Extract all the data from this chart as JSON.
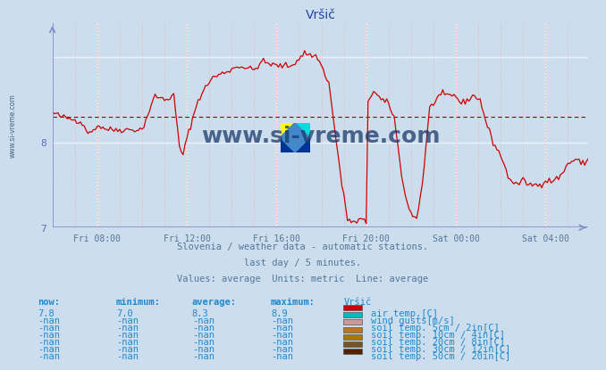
{
  "title": "Vršič",
  "title_color": "#2244aa",
  "bg_color": "#ccdded",
  "plot_bg_color": "#ccdded",
  "axis_color": "#6666bb",
  "line_color": "#cc0000",
  "avg_line_color": "#cc0000",
  "ylim": [
    7.0,
    9.4
  ],
  "yticks": [
    7,
    8
  ],
  "xtick_labels": [
    "Fri 08:00",
    "Fri 12:00",
    "Fri 16:00",
    "Fri 20:00",
    "Sat 00:00",
    "Sat 04:00"
  ],
  "subtitle1": "Slovenia / weather data - automatic stations.",
  "subtitle2": "last day / 5 minutes.",
  "subtitle3": "Values: average  Units: metric  Line: average",
  "subtitle_color": "#557799",
  "watermark": "www.si-vreme.com",
  "watermark_color": "#1a3a6a",
  "table_header_color": "#2288cc",
  "table_data_color": "#2288cc",
  "legend_items": [
    {
      "label": "air temp.[C]",
      "color": "#cc0000"
    },
    {
      "label": "wind gusts[m/s]",
      "color": "#00bbbb"
    },
    {
      "label": "soil temp. 5cm / 2in[C]",
      "color": "#cc9999"
    },
    {
      "label": "soil temp. 10cm / 4in[C]",
      "color": "#bb7722"
    },
    {
      "label": "soil temp. 20cm / 8in[C]",
      "color": "#aa7700"
    },
    {
      "label": "soil temp. 30cm / 12in[C]",
      "color": "#775522"
    },
    {
      "label": "soil temp. 50cm / 20in[C]",
      "color": "#552200"
    }
  ],
  "table_cols": [
    "now:",
    "minimum:",
    "average:",
    "maximum:",
    "Vršič"
  ],
  "table_rows": [
    [
      "7.8",
      "7.0",
      "8.3",
      "8.9"
    ],
    [
      "-nan",
      "-nan",
      "-nan",
      "-nan"
    ],
    [
      "-nan",
      "-nan",
      "-nan",
      "-nan"
    ],
    [
      "-nan",
      "-nan",
      "-nan",
      "-nan"
    ],
    [
      "-nan",
      "-nan",
      "-nan",
      "-nan"
    ],
    [
      "-nan",
      "-nan",
      "-nan",
      "-nan"
    ],
    [
      "-nan",
      "-nan",
      "-nan",
      "-nan"
    ]
  ],
  "average_value": 8.3,
  "now_value": 7.8,
  "n_points": 288,
  "keypoints": [
    [
      0,
      8.35
    ],
    [
      5,
      8.3
    ],
    [
      15,
      8.25
    ],
    [
      20,
      8.1
    ],
    [
      24,
      8.2
    ],
    [
      30,
      8.15
    ],
    [
      40,
      8.15
    ],
    [
      48,
      8.15
    ],
    [
      55,
      8.55
    ],
    [
      60,
      8.5
    ],
    [
      65,
      8.55
    ],
    [
      68,
      7.95
    ],
    [
      70,
      7.85
    ],
    [
      72,
      8.05
    ],
    [
      78,
      8.5
    ],
    [
      85,
      8.75
    ],
    [
      95,
      8.85
    ],
    [
      100,
      8.9
    ],
    [
      108,
      8.85
    ],
    [
      112,
      8.95
    ],
    [
      120,
      8.9
    ],
    [
      124,
      8.9
    ],
    [
      128,
      8.9
    ],
    [
      135,
      9.05
    ],
    [
      142,
      9.0
    ],
    [
      148,
      8.7
    ],
    [
      155,
      7.5
    ],
    [
      158,
      7.1
    ],
    [
      162,
      7.05
    ],
    [
      165,
      7.1
    ],
    [
      168,
      7.05
    ],
    [
      169,
      8.5
    ],
    [
      172,
      8.6
    ],
    [
      176,
      8.5
    ],
    [
      180,
      8.45
    ],
    [
      183,
      8.3
    ],
    [
      187,
      7.6
    ],
    [
      191,
      7.2
    ],
    [
      195,
      7.1
    ],
    [
      198,
      7.5
    ],
    [
      202,
      8.4
    ],
    [
      207,
      8.55
    ],
    [
      210,
      8.55
    ],
    [
      216,
      8.55
    ],
    [
      219,
      8.45
    ],
    [
      222,
      8.5
    ],
    [
      226,
      8.55
    ],
    [
      229,
      8.5
    ],
    [
      232,
      8.25
    ],
    [
      236,
      8.0
    ],
    [
      240,
      7.85
    ],
    [
      244,
      7.6
    ],
    [
      248,
      7.5
    ],
    [
      252,
      7.55
    ],
    [
      256,
      7.5
    ],
    [
      260,
      7.5
    ],
    [
      264,
      7.55
    ],
    [
      268,
      7.55
    ],
    [
      272,
      7.6
    ],
    [
      276,
      7.75
    ],
    [
      280,
      7.8
    ],
    [
      284,
      7.75
    ],
    [
      287,
      7.8
    ]
  ]
}
